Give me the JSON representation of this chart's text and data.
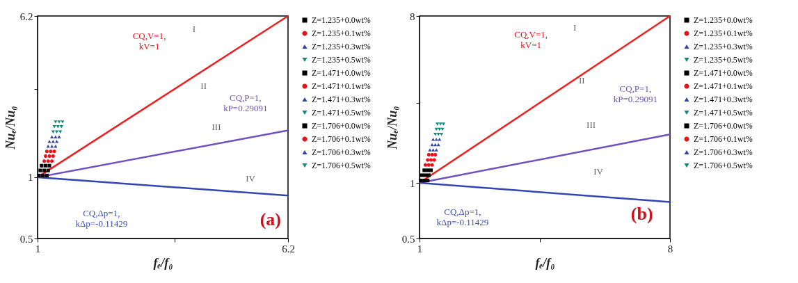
{
  "chart_data": [
    {
      "type": "scatter",
      "xlabel": "fₑ/f₀",
      "ylabel": "Nuₑ/Nu₀",
      "log": "xy",
      "xlim": [
        1,
        6.2
      ],
      "ylim": [
        0.5,
        6.2
      ],
      "xticks": [
        1,
        {
          "value": 2.718,
          "label": null
        },
        6.2
      ],
      "yticks": [
        0.5,
        1,
        {
          "value": 2.718,
          "label": null
        },
        6.2
      ],
      "legend": "right",
      "grid": false,
      "series": [
        {
          "name": "Z=1.235+0.0wt%",
          "color": "#000000",
          "marker": "square",
          "x": [
            1.01,
            1.02,
            1.03
          ],
          "values": [
            1.02,
            1.08,
            1.14
          ]
        },
        {
          "name": "Z=1.235+0.1wt%",
          "color": "#e8141c",
          "marker": "circle",
          "x": [
            1.05,
            1.06,
            1.07
          ],
          "values": [
            1.2,
            1.27,
            1.34
          ]
        },
        {
          "name": "Z=1.235+0.3wt%",
          "color": "#2f44a8",
          "marker": "triangle",
          "x": [
            1.08,
            1.09,
            1.11
          ],
          "values": [
            1.42,
            1.5,
            1.58
          ]
        },
        {
          "name": "Z=1.235+0.5wt%",
          "color": "#0f8a7e",
          "marker": "triangle-down",
          "x": [
            1.12,
            1.13,
            1.14
          ],
          "values": [
            1.67,
            1.77,
            1.87
          ]
        },
        {
          "name": "Z=1.471+0.0wt%",
          "color": "#000000",
          "marker": "square",
          "x": [
            1.04,
            1.05,
            1.06
          ],
          "values": [
            1.02,
            1.08,
            1.14
          ]
        },
        {
          "name": "Z=1.471+0.1wt%",
          "color": "#e8141c",
          "marker": "circle",
          "x": [
            1.08,
            1.09,
            1.1
          ],
          "values": [
            1.2,
            1.27,
            1.34
          ]
        },
        {
          "name": "Z=1.471+0.3wt%",
          "color": "#2f44a8",
          "marker": "triangle",
          "x": [
            1.11,
            1.12,
            1.14
          ],
          "values": [
            1.42,
            1.5,
            1.58
          ]
        },
        {
          "name": "Z=1.471+0.5wt%",
          "color": "#0f8a7e",
          "marker": "triangle-down",
          "x": [
            1.15,
            1.16,
            1.17
          ],
          "values": [
            1.67,
            1.77,
            1.87
          ]
        },
        {
          "name": "Z=1.706+0.0wt%",
          "color": "#000000",
          "marker": "square",
          "x": [
            1.07,
            1.08,
            1.09
          ],
          "values": [
            1.02,
            1.08,
            1.14
          ]
        },
        {
          "name": "Z=1.706+0.1wt%",
          "color": "#e8141c",
          "marker": "circle",
          "x": [
            1.11,
            1.12,
            1.13
          ],
          "values": [
            1.2,
            1.27,
            1.34
          ]
        },
        {
          "name": "Z=1.706+0.3wt%",
          "color": "#2f44a8",
          "marker": "triangle",
          "x": [
            1.14,
            1.15,
            1.17
          ],
          "values": [
            1.42,
            1.5,
            1.58
          ]
        },
        {
          "name": "Z=1.706+0.5wt%",
          "color": "#0f8a7e",
          "marker": "triangle-down",
          "x": [
            1.18,
            1.19,
            1.2
          ],
          "values": [
            1.67,
            1.77,
            1.87
          ]
        },
        {
          "type": "line",
          "color": "#f01e1e",
          "x": [
            1,
            6.2
          ],
          "values": [
            1,
            6.2
          ]
        },
        {
          "type": "line",
          "color": "#7050c0",
          "x": [
            1,
            6.2
          ],
          "values": [
            1,
            1.7
          ]
        },
        {
          "type": "line",
          "color": "#3346b0",
          "x": [
            1,
            6.2
          ],
          "values": [
            1,
            0.812
          ]
        }
      ],
      "annotations": [
        "CQ,V=1,\nkV=1",
        "CQ,P=1,\nkP=0.29091",
        "CQ,Δp=1,\nkΔp=-0.11429",
        "I",
        "II",
        "III",
        "IV",
        "(a)"
      ]
    },
    {
      "type": "scatter",
      "xlabel": "fₑ/f₀",
      "ylabel": "Nuₑ/Nu₀",
      "log": "xy",
      "xlim": [
        1,
        8
      ],
      "ylim": [
        0.5,
        8
      ],
      "xticks": [
        1,
        {
          "value": 2.718,
          "label": null
        },
        8
      ],
      "yticks": [
        0.5,
        1,
        {
          "value": 2.718,
          "label": null
        },
        8
      ],
      "legend": "right",
      "grid": false,
      "series": [
        {
          "name": "Z=1.235+0.0wt%",
          "color": "#000000",
          "marker": "square",
          "x": [
            1.01,
            1.02,
            1.04
          ],
          "values": [
            1.03,
            1.1,
            1.17
          ]
        },
        {
          "name": "Z=1.235+0.1wt%",
          "color": "#e8141c",
          "marker": "circle",
          "x": [
            1.05,
            1.07,
            1.08
          ],
          "values": [
            1.25,
            1.33,
            1.42
          ]
        },
        {
          "name": "Z=1.235+0.3wt%",
          "color": "#2f44a8",
          "marker": "triangle",
          "x": [
            1.09,
            1.11,
            1.12
          ],
          "values": [
            1.51,
            1.61,
            1.72
          ]
        },
        {
          "name": "Z=1.235+0.5wt%",
          "color": "#0f8a7e",
          "marker": "triangle-down",
          "x": [
            1.14,
            1.15,
            1.16
          ],
          "values": [
            1.83,
            1.95,
            2.08
          ]
        },
        {
          "name": "Z=1.471+0.0wt%",
          "color": "#000000",
          "marker": "square",
          "x": [
            1.04,
            1.05,
            1.07
          ],
          "values": [
            1.03,
            1.1,
            1.17
          ]
        },
        {
          "name": "Z=1.471+0.1wt%",
          "color": "#e8141c",
          "marker": "circle",
          "x": [
            1.08,
            1.1,
            1.11
          ],
          "values": [
            1.25,
            1.33,
            1.42
          ]
        },
        {
          "name": "Z=1.471+0.3wt%",
          "color": "#2f44a8",
          "marker": "triangle",
          "x": [
            1.12,
            1.14,
            1.15
          ],
          "values": [
            1.51,
            1.61,
            1.72
          ]
        },
        {
          "name": "Z=1.471+0.5wt%",
          "color": "#0f8a7e",
          "marker": "triangle-down",
          "x": [
            1.17,
            1.18,
            1.19
          ],
          "values": [
            1.83,
            1.95,
            2.08
          ]
        },
        {
          "name": "Z=1.706+0.0wt%",
          "color": "#000000",
          "marker": "square",
          "x": [
            1.07,
            1.08,
            1.1
          ],
          "values": [
            1.03,
            1.1,
            1.17
          ]
        },
        {
          "name": "Z=1.706+0.1wt%",
          "color": "#e8141c",
          "marker": "circle",
          "x": [
            1.11,
            1.13,
            1.14
          ],
          "values": [
            1.25,
            1.33,
            1.42
          ]
        },
        {
          "name": "Z=1.706+0.3wt%",
          "color": "#2f44a8",
          "marker": "triangle",
          "x": [
            1.15,
            1.17,
            1.18
          ],
          "values": [
            1.51,
            1.61,
            1.72
          ]
        },
        {
          "name": "Z=1.706+0.5wt%",
          "color": "#0f8a7e",
          "marker": "triangle-down",
          "x": [
            1.2,
            1.21,
            1.22
          ],
          "values": [
            1.83,
            1.95,
            2.08
          ]
        },
        {
          "type": "line",
          "color": "#f01e1e",
          "x": [
            1,
            8
          ],
          "values": [
            1,
            8
          ]
        },
        {
          "type": "line",
          "color": "#7050c0",
          "x": [
            1,
            8
          ],
          "values": [
            1,
            1.83
          ]
        },
        {
          "type": "line",
          "color": "#3346b0",
          "x": [
            1,
            8
          ],
          "values": [
            1,
            0.788
          ]
        }
      ],
      "annotations": [
        "CQ,V=1,\nkV=1",
        "CQ,P=1,\nkP=0.29091",
        "CQ,Δp=1,\nkΔp=-0.11429",
        "I",
        "II",
        "III",
        "IV",
        "(b)"
      ]
    }
  ]
}
